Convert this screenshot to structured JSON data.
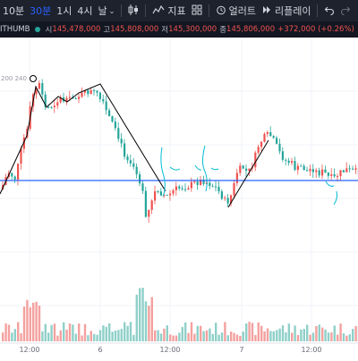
{
  "toolbar": {
    "intervals": [
      {
        "label": "10분",
        "active": false
      },
      {
        "label": "30분",
        "active": true
      },
      {
        "label": "1시",
        "active": false
      },
      {
        "label": "4시",
        "active": false
      },
      {
        "label": "날",
        "active": false
      }
    ],
    "interval_chevron": "⌄",
    "candle_icon": "candlestick-icon",
    "indicators_label": "지표",
    "layout_icon": "grid-icon",
    "alert_label": "얼러트",
    "replay_label": "리플레이",
    "undo_icon": "undo-icon",
    "redo_icon": "redo-icon"
  },
  "infobar": {
    "symbol": "ITHUMB",
    "open_label": "시",
    "open": "145,478,000",
    "high_label": "고",
    "high": "145,808,000",
    "low_label": "저",
    "low": "145,300,000",
    "close_label": "종",
    "close": "145,806,000",
    "change": "+372,000 (+0.26%)"
  },
  "volume_label": "200 240",
  "time_axis": [
    "12:00",
    "6",
    "12:00",
    "7",
    "12:00"
  ],
  "colors": {
    "up": "#ef5350",
    "down": "#26a69a",
    "support_line": "#2962ff",
    "drawing": "#000000",
    "hand_mark": "#00bcd4"
  }
}
